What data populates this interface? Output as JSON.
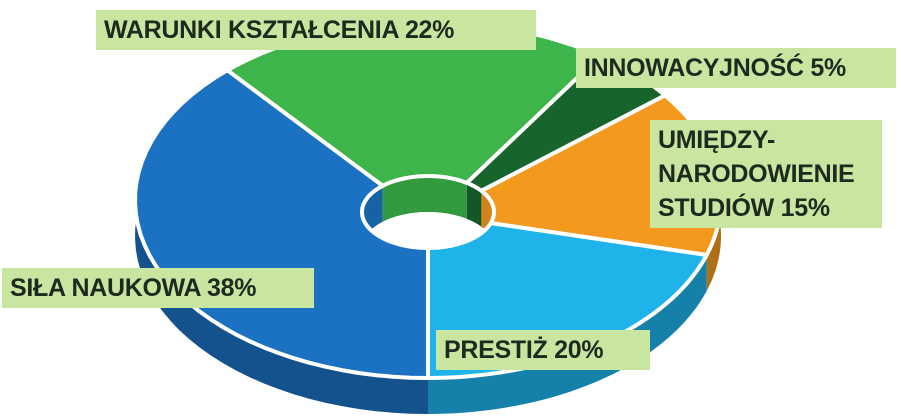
{
  "chart_data": {
    "type": "pie",
    "categories": [
      "SIŁA NAUKOWA",
      "WARUNKI KSZTAŁCENIA",
      "INNOWACYJNOŚĆ",
      "UMIĘDZY-NARODOWIENIE STUDIÓW",
      "PRESTIŻ"
    ],
    "values": [
      38,
      22,
      5,
      15,
      20
    ],
    "value_labels": [
      "38%",
      "22%",
      "5%",
      "15%",
      "20%"
    ],
    "colors": [
      "#1b72c2",
      "#3db54a",
      "#17652c",
      "#f39a1e",
      "#1fb3ea"
    ],
    "donut": true,
    "three_d": true
  }
}
